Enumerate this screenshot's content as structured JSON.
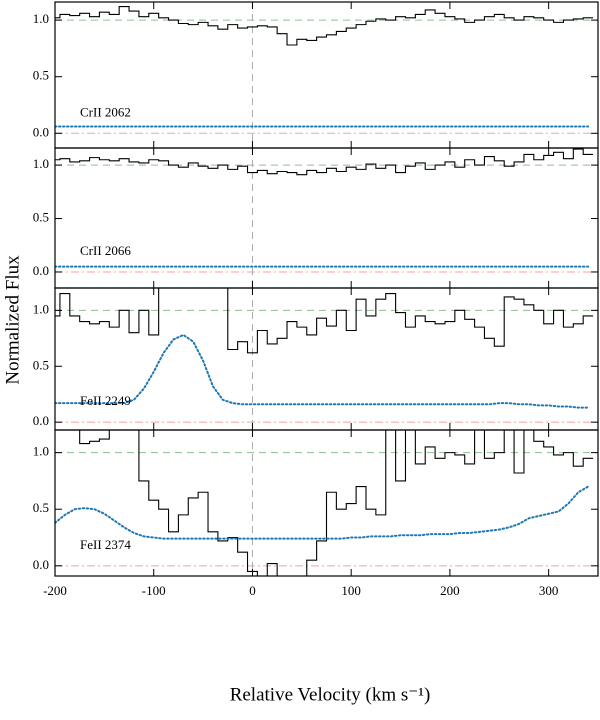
{
  "figure": {
    "ylabel": "Normalized Flux",
    "xlabel": "Relative Velocity  (km s⁻¹)"
  },
  "chart_data": [
    {
      "type": "step",
      "annotation": "CrII 2062",
      "x": [
        -200,
        -190,
        -180,
        -170,
        -160,
        -150,
        -140,
        -130,
        -120,
        -110,
        -100,
        -90,
        -80,
        -70,
        -60,
        -50,
        -40,
        -30,
        -20,
        -10,
        0,
        10,
        20,
        30,
        40,
        50,
        60,
        70,
        80,
        90,
        100,
        110,
        120,
        130,
        140,
        150,
        160,
        170,
        180,
        190,
        200,
        210,
        220,
        230,
        240,
        250,
        260,
        270,
        280,
        290,
        300,
        310,
        320,
        330,
        340
      ],
      "series": [
        {
          "color": "#000000",
          "drawstyle": "steps-mid",
          "values": [
            1.02,
            1.05,
            1.04,
            1.06,
            1.03,
            1.07,
            1.05,
            1.12,
            1.08,
            1.03,
            1.06,
            1.02,
            1.0,
            0.97,
            0.96,
            0.98,
            0.95,
            0.92,
            0.96,
            0.93,
            0.94,
            0.95,
            0.94,
            0.88,
            0.78,
            0.83,
            0.82,
            0.85,
            0.87,
            0.9,
            0.93,
            0.96,
            0.99,
            1.01,
            1.0,
            1.03,
            1.02,
            1.05,
            1.09,
            1.06,
            1.03,
            1.01,
            0.98,
            1.0,
            1.03,
            1.05,
            1.02,
            1.0,
            1.03,
            1.02,
            1.0,
            0.98,
            1.0,
            1.01,
            1.02
          ]
        },
        {
          "color": "#1f77b4",
          "linestyle": "dotted",
          "values": [
            0.06,
            0.06,
            0.06,
            0.06,
            0.06,
            0.06,
            0.06,
            0.06,
            0.06,
            0.06,
            0.06,
            0.06,
            0.06,
            0.06,
            0.06,
            0.06,
            0.06,
            0.06,
            0.06,
            0.06,
            0.06,
            0.06,
            0.06,
            0.06,
            0.06,
            0.06,
            0.06,
            0.06,
            0.06,
            0.06,
            0.06,
            0.06,
            0.06,
            0.06,
            0.06,
            0.06,
            0.06,
            0.06,
            0.06,
            0.06,
            0.06,
            0.06,
            0.06,
            0.06,
            0.06,
            0.06,
            0.06,
            0.06,
            0.06,
            0.06,
            0.06,
            0.06,
            0.06,
            0.06,
            0.06
          ]
        }
      ],
      "xlim": [
        -200,
        350
      ],
      "xticks": [
        -200,
        -100,
        0,
        100,
        200,
        300
      ],
      "ylim": [
        -0.13,
        1.16
      ],
      "yticks": [
        {
          "value": 0,
          "label": "0.0"
        },
        0.5,
        {
          "value": 1,
          "label": "1.0"
        }
      ]
    },
    {
      "type": "step",
      "annotation": "CrII 2066",
      "x": [
        -200,
        -190,
        -180,
        -170,
        -160,
        -150,
        -140,
        -130,
        -120,
        -110,
        -100,
        -90,
        -80,
        -70,
        -60,
        -50,
        -40,
        -30,
        -20,
        -10,
        0,
        10,
        20,
        30,
        40,
        50,
        60,
        70,
        80,
        90,
        100,
        110,
        120,
        130,
        140,
        150,
        160,
        170,
        180,
        190,
        200,
        210,
        220,
        230,
        240,
        250,
        260,
        270,
        280,
        290,
        300,
        310,
        320,
        330,
        340
      ],
      "series": [
        {
          "color": "#000000",
          "drawstyle": "steps-mid",
          "values": [
            1.05,
            1.06,
            1.03,
            1.04,
            1.07,
            1.05,
            1.04,
            1.06,
            1.03,
            1.02,
            1.05,
            1.04,
            1.0,
            0.98,
            1.02,
            0.99,
            0.97,
            1.0,
            0.96,
            0.99,
            0.93,
            0.95,
            0.92,
            0.94,
            0.93,
            0.91,
            0.95,
            0.93,
            0.97,
            0.94,
            0.98,
            0.96,
            1.01,
            0.97,
            1.0,
            0.93,
            0.99,
            1.02,
            0.96,
            1.0,
            1.03,
            0.98,
            1.05,
            1.0,
            1.08,
            1.04,
            0.99,
            1.03,
            1.1,
            1.05,
            1.09,
            1.12,
            1.06,
            1.15,
            1.1
          ]
        },
        {
          "color": "#1f77b4",
          "linestyle": "dotted",
          "values": [
            0.05,
            0.05,
            0.05,
            0.05,
            0.05,
            0.05,
            0.05,
            0.05,
            0.05,
            0.05,
            0.05,
            0.05,
            0.05,
            0.05,
            0.05,
            0.05,
            0.05,
            0.05,
            0.05,
            0.05,
            0.05,
            0.05,
            0.05,
            0.05,
            0.05,
            0.05,
            0.05,
            0.05,
            0.05,
            0.05,
            0.05,
            0.05,
            0.05,
            0.05,
            0.05,
            0.05,
            0.05,
            0.05,
            0.05,
            0.05,
            0.05,
            0.05,
            0.05,
            0.05,
            0.05,
            0.05,
            0.05,
            0.05,
            0.05,
            0.05,
            0.05,
            0.05,
            0.05,
            0.05,
            0.05
          ]
        }
      ],
      "xlim": [
        -200,
        350
      ],
      "xticks": [
        -200,
        -100,
        0,
        100,
        200,
        300
      ],
      "ylim": [
        -0.15,
        1.16
      ],
      "yticks": [
        {
          "value": 0,
          "label": "0.0"
        },
        0.5,
        {
          "value": 1,
          "label": "1.0"
        }
      ]
    },
    {
      "type": "step",
      "annotation": "FeII 2249",
      "x": [
        -200,
        -190,
        -180,
        -170,
        -160,
        -150,
        -140,
        -130,
        -120,
        -110,
        -100,
        -90,
        -80,
        -70,
        -60,
        -50,
        -40,
        -30,
        -20,
        -10,
        0,
        10,
        20,
        30,
        40,
        50,
        60,
        70,
        80,
        90,
        100,
        110,
        120,
        130,
        140,
        150,
        160,
        170,
        180,
        190,
        200,
        210,
        220,
        230,
        240,
        250,
        260,
        270,
        280,
        290,
        300,
        310,
        320,
        330,
        340
      ],
      "series": [
        {
          "color": "#000000",
          "drawstyle": "steps-mid",
          "values": [
            0.95,
            1.15,
            0.95,
            0.9,
            0.88,
            0.9,
            0.85,
            1.0,
            0.8,
            1.0,
            0.78,
            1.2,
            1.2,
            1.2,
            1.2,
            1.2,
            1.2,
            1.2,
            0.65,
            0.72,
            0.62,
            0.82,
            0.7,
            0.75,
            0.9,
            0.85,
            0.78,
            0.93,
            0.86,
            1.0,
            0.82,
            1.1,
            0.95,
            1.1,
            1.15,
            0.98,
            0.85,
            0.95,
            0.9,
            0.88,
            0.9,
            1.0,
            0.92,
            0.85,
            0.75,
            0.68,
            1.12,
            1.1,
            1.05,
            1.0,
            0.88,
            1.0,
            0.85,
            0.88,
            0.95
          ]
        },
        {
          "color": "#1f77b4",
          "linestyle": "dotted",
          "values": [
            0.17,
            0.17,
            0.17,
            0.17,
            0.17,
            0.17,
            0.17,
            0.17,
            0.2,
            0.3,
            0.45,
            0.62,
            0.74,
            0.78,
            0.72,
            0.55,
            0.32,
            0.2,
            0.17,
            0.16,
            0.16,
            0.16,
            0.16,
            0.16,
            0.16,
            0.16,
            0.16,
            0.16,
            0.16,
            0.16,
            0.16,
            0.16,
            0.16,
            0.16,
            0.16,
            0.16,
            0.16,
            0.16,
            0.16,
            0.16,
            0.16,
            0.16,
            0.16,
            0.16,
            0.16,
            0.17,
            0.17,
            0.16,
            0.16,
            0.15,
            0.15,
            0.14,
            0.14,
            0.13,
            0.13
          ]
        }
      ],
      "xlim": [
        -200,
        350
      ],
      "xticks": [
        -200,
        -100,
        0,
        100,
        200,
        300
      ],
      "ylim": [
        -0.07,
        1.2
      ],
      "yticks": [
        {
          "value": 0,
          "label": "0.0"
        },
        0.5,
        {
          "value": 1,
          "label": "1.0"
        }
      ]
    },
    {
      "type": "step",
      "annotation": "FeII 2374",
      "x": [
        -200,
        -190,
        -180,
        -170,
        -160,
        -150,
        -140,
        -130,
        -120,
        -110,
        -100,
        -90,
        -80,
        -70,
        -60,
        -50,
        -40,
        -30,
        -20,
        -10,
        0,
        10,
        20,
        30,
        40,
        50,
        60,
        70,
        80,
        90,
        100,
        110,
        120,
        130,
        140,
        150,
        160,
        170,
        180,
        190,
        200,
        210,
        220,
        230,
        240,
        250,
        260,
        270,
        280,
        290,
        300,
        310,
        320,
        330,
        340
      ],
      "series": [
        {
          "color": "#000000",
          "drawstyle": "steps-mid",
          "values": [
            1.2,
            1.2,
            1.2,
            1.08,
            1.1,
            1.12,
            1.2,
            1.2,
            1.2,
            0.75,
            0.58,
            0.5,
            0.3,
            0.45,
            0.6,
            0.65,
            0.3,
            0.22,
            0.25,
            0.12,
            -0.05,
            -0.1,
            0.02,
            -0.1,
            -0.1,
            -0.1,
            0.05,
            0.22,
            0.65,
            0.5,
            0.55,
            0.7,
            0.5,
            0.45,
            1.2,
            0.75,
            1.2,
            0.9,
            1.05,
            0.95,
            1.0,
            0.98,
            0.9,
            1.2,
            0.95,
            1.0,
            1.2,
            0.82,
            1.2,
            1.1,
            1.05,
            0.98,
            1.0,
            0.88,
            0.95
          ]
        },
        {
          "color": "#1f77b4",
          "linestyle": "dotted",
          "values": [
            0.38,
            0.45,
            0.5,
            0.51,
            0.5,
            0.46,
            0.4,
            0.34,
            0.29,
            0.26,
            0.25,
            0.24,
            0.24,
            0.24,
            0.24,
            0.24,
            0.24,
            0.24,
            0.24,
            0.24,
            0.24,
            0.24,
            0.24,
            0.24,
            0.24,
            0.24,
            0.24,
            0.24,
            0.24,
            0.24,
            0.25,
            0.25,
            0.26,
            0.26,
            0.26,
            0.27,
            0.27,
            0.27,
            0.28,
            0.28,
            0.28,
            0.29,
            0.29,
            0.3,
            0.31,
            0.32,
            0.34,
            0.37,
            0.42,
            0.44,
            0.46,
            0.48,
            0.55,
            0.65,
            0.7
          ]
        }
      ],
      "xlim": [
        -200,
        350
      ],
      "xticks": [
        -200,
        -100,
        0,
        100,
        200,
        300
      ],
      "ylim": [
        -0.09,
        1.2
      ],
      "yticks": [
        {
          "value": 0,
          "label": "0.0"
        },
        0.5,
        {
          "value": 1,
          "label": "1.0"
        }
      ]
    }
  ]
}
